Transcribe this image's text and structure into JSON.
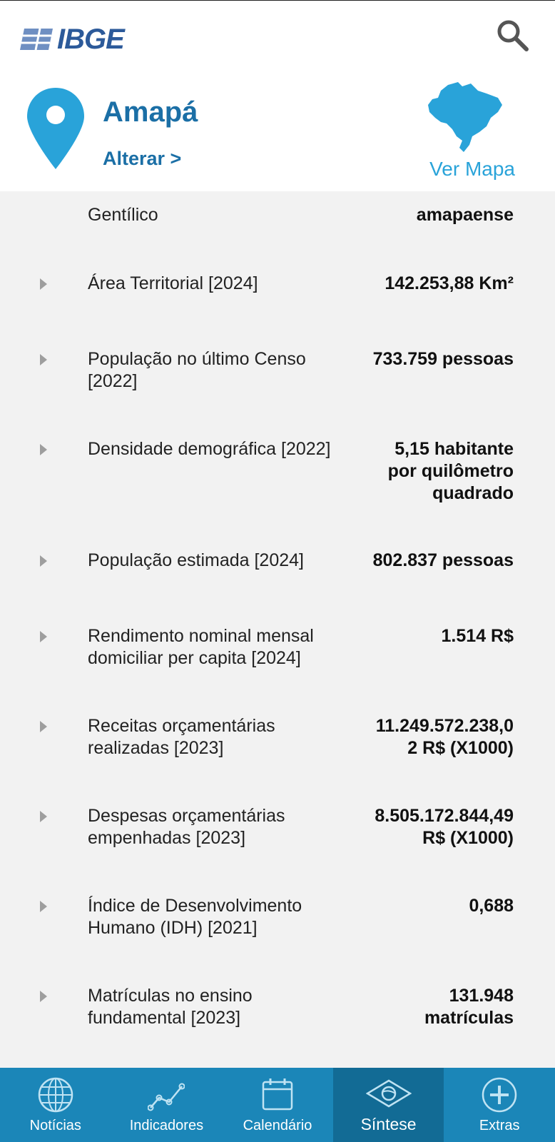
{
  "header": {
    "logo_text": "IBGE",
    "search_icon": "search-icon"
  },
  "location": {
    "name": "Amapá",
    "change_label": "Alterar >",
    "map_label": "Ver Mapa",
    "pin_icon": "location-pin-icon",
    "map_icon": "brazil-map-icon"
  },
  "indicators": [
    {
      "label": "Gentílico",
      "value": "amapaense",
      "expandable": false
    },
    {
      "label": "Área Territorial [2024]",
      "value": "142.253,88 Km²",
      "expandable": true
    },
    {
      "label": "População no último Censo [2022]",
      "value": "733.759 pessoas",
      "expandable": true
    },
    {
      "label": "Densidade demográfica [2022]",
      "value": "5,15 habitante por quilômetro quadrado",
      "expandable": true
    },
    {
      "label": "População estimada [2024]",
      "value": "802.837 pessoas",
      "expandable": true
    },
    {
      "label": "Rendimento nominal mensal domiciliar per capita [2024]",
      "value": "1.514 R$",
      "expandable": true
    },
    {
      "label": "Receitas orçamentárias realizadas [2023]",
      "value": "11.249.572.238,02 R$ (X1000)",
      "expandable": true
    },
    {
      "label": "Despesas orçamentárias empenhadas [2023]",
      "value": "8.505.172.844,49 R$ (X1000)",
      "expandable": true
    },
    {
      "label": "Índice de Desenvolvimento Humano (IDH) [2021]",
      "value": "0,688",
      "expandable": true
    },
    {
      "label": "Matrículas no ensino fundamental [2023]",
      "value": "131.948 matrículas",
      "expandable": true
    }
  ],
  "nav": {
    "items": [
      {
        "label": "Notícias",
        "icon": "globe-icon",
        "active": false
      },
      {
        "label": "Indicadores",
        "icon": "line-chart-icon",
        "active": false
      },
      {
        "label": "Calendário",
        "icon": "calendar-icon",
        "active": false
      },
      {
        "label": "Síntese",
        "icon": "brazil-flag-icon",
        "active": true
      },
      {
        "label": "Extras",
        "icon": "plus-circle-icon",
        "active": false
      }
    ]
  },
  "colors": {
    "brand_blue": "#1b6fa6",
    "accent_light_blue": "#29a3d9",
    "nav_bg": "#1b86b8",
    "nav_active_bg": "#126b95",
    "list_bg": "#f2f2f2"
  }
}
